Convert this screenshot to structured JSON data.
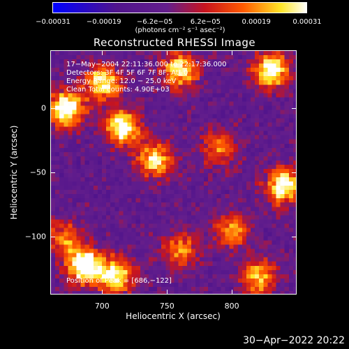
{
  "chart_data": {
    "type": "heatmap",
    "title": "Reconstructed RHESSI Image",
    "xlabel": "Heliocentric X (arcsec)",
    "ylabel": "Heliocentric Y (arcsec)",
    "xlim": [
      660,
      850
    ],
    "ylim": [
      -145,
      45
    ],
    "x_ticks": [
      {
        "value": 700,
        "label": "700"
      },
      {
        "value": 750,
        "label": "750"
      },
      {
        "value": 800,
        "label": "800"
      }
    ],
    "y_ticks": [
      {
        "value": 0,
        "label": "0"
      },
      {
        "value": -50,
        "label": "−50"
      },
      {
        "value": -100,
        "label": "−100"
      }
    ],
    "colorbar": {
      "min": -0.00031,
      "max": 0.00031,
      "colormap": "blue-purple-red-yellow-white",
      "tick_labels": [
        "−0.00031",
        "−0.00019",
        "−6.2e−05",
        "6.2e−05",
        "0.00019",
        "0.00031"
      ],
      "unit_label": "(photons cm⁻² s⁻¹ asec⁻²)"
    },
    "annotations": [
      "17−May−2004 22:11:36.000 to 22:17:36.000",
      "Detectors: 3F 4F 5F 6F 7F 8F, Att 0",
      "Energy Range: 12.0 − 25.0 keV",
      "Clean    Total counts: 4.90E+03",
      "Position of Peak = [686,−122]"
    ],
    "peak_position": [
      686,
      -122
    ],
    "bright_regions": [
      {
        "x": 672,
        "y": 0,
        "level": 0.95
      },
      {
        "x": 700,
        "y": 20,
        "level": 0.8
      },
      {
        "x": 715,
        "y": -15,
        "level": 0.85
      },
      {
        "x": 740,
        "y": -40,
        "level": 0.7
      },
      {
        "x": 760,
        "y": 30,
        "level": 0.75
      },
      {
        "x": 830,
        "y": 30,
        "level": 0.85
      },
      {
        "x": 840,
        "y": -60,
        "level": 0.9
      },
      {
        "x": 800,
        "y": -95,
        "level": 0.6
      },
      {
        "x": 760,
        "y": -110,
        "level": 0.55
      },
      {
        "x": 686,
        "y": -122,
        "level": 1.0
      },
      {
        "x": 710,
        "y": -130,
        "level": 0.8
      },
      {
        "x": 670,
        "y": -100,
        "level": 0.5
      },
      {
        "x": 790,
        "y": -30,
        "level": 0.5
      },
      {
        "x": 820,
        "y": -130,
        "level": 0.7
      }
    ]
  },
  "footer": {
    "date": "30−Apr−2022 20:22"
  }
}
